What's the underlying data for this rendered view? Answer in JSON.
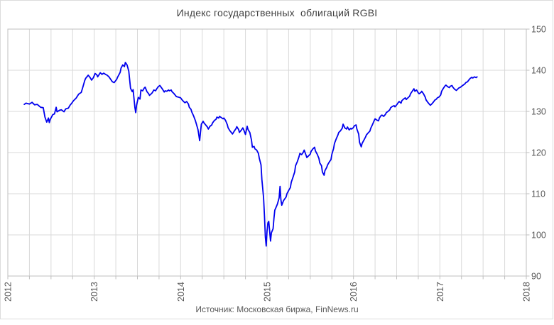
{
  "title": "Индекс государственных  облигаций RGBI",
  "source": "Источник: Московская биржа, FinNews.ru",
  "chart_data": {
    "type": "line",
    "title": "Индекс государственных облигаций RGBI",
    "series_name": "RGBI",
    "xlabel": "",
    "ylabel": "",
    "x_range": [
      2012,
      2018
    ],
    "y_range": [
      90,
      150
    ],
    "x_ticks": [
      "2012",
      "2013",
      "2014",
      "2015",
      "2016",
      "2017",
      "2018"
    ],
    "y_ticks": [
      "90",
      "100",
      "110",
      "120",
      "130",
      "140",
      "150"
    ],
    "x_minor_grid_step": 0.25,
    "grid": true,
    "legend": false,
    "line_color": "#0000ee",
    "grid_color": "#d9d9d9",
    "axis_color": "#bfbfbf",
    "label_color": "#595959",
    "title_color": "#404040",
    "points": [
      [
        2012.19,
        131.7
      ],
      [
        2012.21,
        132.0
      ],
      [
        2012.25,
        131.8
      ],
      [
        2012.28,
        132.2
      ],
      [
        2012.31,
        131.6
      ],
      [
        2012.34,
        131.7
      ],
      [
        2012.38,
        131.0
      ],
      [
        2012.41,
        130.9
      ],
      [
        2012.43,
        128.6
      ],
      [
        2012.45,
        127.4
      ],
      [
        2012.47,
        128.4
      ],
      [
        2012.48,
        127.3
      ],
      [
        2012.49,
        128.0
      ],
      [
        2012.52,
        129.2
      ],
      [
        2012.54,
        129.4
      ],
      [
        2012.56,
        131.0
      ],
      [
        2012.57,
        129.9
      ],
      [
        2012.6,
        130.3
      ],
      [
        2012.62,
        130.4
      ],
      [
        2012.65,
        129.9
      ],
      [
        2012.67,
        130.6
      ],
      [
        2012.7,
        130.8
      ],
      [
        2012.72,
        131.5
      ],
      [
        2012.74,
        132.0
      ],
      [
        2012.76,
        132.6
      ],
      [
        2012.79,
        133.2
      ],
      [
        2012.82,
        134.2
      ],
      [
        2012.85,
        134.6
      ],
      [
        2012.87,
        136.0
      ],
      [
        2012.89,
        137.5
      ],
      [
        2012.9,
        138.0
      ],
      [
        2012.93,
        138.8
      ],
      [
        2012.95,
        138.3
      ],
      [
        2012.97,
        137.6
      ],
      [
        2012.99,
        138.2
      ],
      [
        2013.01,
        139.2
      ],
      [
        2013.03,
        138.9
      ],
      [
        2013.04,
        138.4
      ],
      [
        2013.07,
        139.4
      ],
      [
        2013.09,
        139.0
      ],
      [
        2013.11,
        139.3
      ],
      [
        2013.13,
        139.0
      ],
      [
        2013.15,
        138.8
      ],
      [
        2013.17,
        138.4
      ],
      [
        2013.19,
        137.8
      ],
      [
        2013.21,
        137.2
      ],
      [
        2013.23,
        137.0
      ],
      [
        2013.26,
        137.8
      ],
      [
        2013.27,
        138.3
      ],
      [
        2013.3,
        139.5
      ],
      [
        2013.31,
        140.5
      ],
      [
        2013.33,
        141.3
      ],
      [
        2013.35,
        140.9
      ],
      [
        2013.36,
        141.9
      ],
      [
        2013.38,
        141.3
      ],
      [
        2013.4,
        139.8
      ],
      [
        2013.42,
        135.6
      ],
      [
        2013.44,
        134.8
      ],
      [
        2013.45,
        135.3
      ],
      [
        2013.47,
        131.0
      ],
      [
        2013.48,
        129.7
      ],
      [
        2013.49,
        131.5
      ],
      [
        2013.51,
        133.4
      ],
      [
        2013.53,
        133.0
      ],
      [
        2013.54,
        135.2
      ],
      [
        2013.56,
        135.0
      ],
      [
        2013.58,
        135.7
      ],
      [
        2013.59,
        135.9
      ],
      [
        2013.61,
        134.8
      ],
      [
        2013.63,
        134.3
      ],
      [
        2013.64,
        133.9
      ],
      [
        2013.66,
        134.3
      ],
      [
        2013.67,
        134.5
      ],
      [
        2013.69,
        135.2
      ],
      [
        2013.71,
        135.0
      ],
      [
        2013.72,
        135.4
      ],
      [
        2013.74,
        136.0
      ],
      [
        2013.76,
        136.3
      ],
      [
        2013.77,
        136.0
      ],
      [
        2013.79,
        135.4
      ],
      [
        2013.81,
        134.7
      ],
      [
        2013.82,
        135.0
      ],
      [
        2013.84,
        134.9
      ],
      [
        2013.86,
        135.2
      ],
      [
        2013.87,
        135.0
      ],
      [
        2013.89,
        135.2
      ],
      [
        2013.9,
        134.8
      ],
      [
        2013.92,
        134.4
      ],
      [
        2013.94,
        133.9
      ],
      [
        2013.95,
        133.6
      ],
      [
        2013.97,
        133.5
      ],
      [
        2014.0,
        133.3
      ],
      [
        2014.02,
        132.7
      ],
      [
        2014.04,
        132.3
      ],
      [
        2014.05,
        132.1
      ],
      [
        2014.07,
        132.4
      ],
      [
        2014.09,
        131.8
      ],
      [
        2014.1,
        131.0
      ],
      [
        2014.12,
        130.5
      ],
      [
        2014.13,
        129.8
      ],
      [
        2014.15,
        128.9
      ],
      [
        2014.17,
        127.8
      ],
      [
        2014.18,
        127.1
      ],
      [
        2014.2,
        125.6
      ],
      [
        2014.21,
        124.3
      ],
      [
        2014.22,
        122.9
      ],
      [
        2014.23,
        125.0
      ],
      [
        2014.24,
        126.9
      ],
      [
        2014.26,
        127.6
      ],
      [
        2014.27,
        127.2
      ],
      [
        2014.29,
        126.7
      ],
      [
        2014.31,
        126.2
      ],
      [
        2014.32,
        125.7
      ],
      [
        2014.34,
        126.4
      ],
      [
        2014.36,
        126.7
      ],
      [
        2014.37,
        127.2
      ],
      [
        2014.39,
        127.8
      ],
      [
        2014.41,
        128.1
      ],
      [
        2014.42,
        128.6
      ],
      [
        2014.44,
        128.4
      ],
      [
        2014.45,
        128.8
      ],
      [
        2014.47,
        128.5
      ],
      [
        2014.49,
        128.2
      ],
      [
        2014.5,
        128.4
      ],
      [
        2014.52,
        127.8
      ],
      [
        2014.54,
        126.8
      ],
      [
        2014.55,
        126.0
      ],
      [
        2014.57,
        125.3
      ],
      [
        2014.59,
        124.8
      ],
      [
        2014.6,
        124.5
      ],
      [
        2014.62,
        125.2
      ],
      [
        2014.64,
        125.8
      ],
      [
        2014.65,
        126.3
      ],
      [
        2014.67,
        125.6
      ],
      [
        2014.68,
        124.9
      ],
      [
        2014.7,
        125.4
      ],
      [
        2014.72,
        126.0
      ],
      [
        2014.73,
        125.5
      ],
      [
        2014.75,
        124.4
      ],
      [
        2014.77,
        126.4
      ],
      [
        2014.78,
        125.6
      ],
      [
        2014.8,
        124.9
      ],
      [
        2014.82,
        123.0
      ],
      [
        2014.83,
        121.3
      ],
      [
        2014.85,
        121.5
      ],
      [
        2014.86,
        120.9
      ],
      [
        2014.88,
        120.6
      ],
      [
        2014.9,
        119.8
      ],
      [
        2014.91,
        118.6
      ],
      [
        2014.93,
        117.0
      ],
      [
        2014.94,
        113.5
      ],
      [
        2014.96,
        109.0
      ],
      [
        2014.97,
        104.5
      ],
      [
        2014.98,
        99.5
      ],
      [
        2014.99,
        97.3
      ],
      [
        2015.0,
        101.0
      ],
      [
        2015.01,
        102.9
      ],
      [
        2015.02,
        103.3
      ],
      [
        2015.03,
        101.0
      ],
      [
        2015.04,
        98.5
      ],
      [
        2015.05,
        100.5
      ],
      [
        2015.07,
        101.5
      ],
      [
        2015.08,
        104.0
      ],
      [
        2015.09,
        106.0
      ],
      [
        2015.1,
        106.5
      ],
      [
        2015.12,
        107.5
      ],
      [
        2015.14,
        109.0
      ],
      [
        2015.15,
        111.8
      ],
      [
        2015.16,
        108.5
      ],
      [
        2015.17,
        107.2
      ],
      [
        2015.19,
        108.3
      ],
      [
        2015.2,
        108.6
      ],
      [
        2015.22,
        109.2
      ],
      [
        2015.23,
        110.0
      ],
      [
        2015.25,
        110.8
      ],
      [
        2015.27,
        111.5
      ],
      [
        2015.28,
        112.8
      ],
      [
        2015.3,
        114.0
      ],
      [
        2015.32,
        115.3
      ],
      [
        2015.33,
        116.8
      ],
      [
        2015.35,
        117.8
      ],
      [
        2015.37,
        119.0
      ],
      [
        2015.38,
        119.8
      ],
      [
        2015.4,
        119.5
      ],
      [
        2015.42,
        120.1
      ],
      [
        2015.43,
        120.6
      ],
      [
        2015.45,
        119.4
      ],
      [
        2015.46,
        118.8
      ],
      [
        2015.48,
        119.2
      ],
      [
        2015.5,
        119.6
      ],
      [
        2015.51,
        120.3
      ],
      [
        2015.53,
        120.9
      ],
      [
        2015.55,
        121.3
      ],
      [
        2015.56,
        120.4
      ],
      [
        2015.58,
        119.6
      ],
      [
        2015.6,
        118.6
      ],
      [
        2015.61,
        117.5
      ],
      [
        2015.63,
        116.8
      ],
      [
        2015.64,
        115.3
      ],
      [
        2015.66,
        114.5
      ],
      [
        2015.67,
        115.6
      ],
      [
        2015.69,
        116.4
      ],
      [
        2015.7,
        117.0
      ],
      [
        2015.72,
        117.7
      ],
      [
        2015.74,
        118.3
      ],
      [
        2015.75,
        119.6
      ],
      [
        2015.77,
        121.0
      ],
      [
        2015.78,
        122.2
      ],
      [
        2015.8,
        123.3
      ],
      [
        2015.82,
        124.3
      ],
      [
        2015.83,
        124.9
      ],
      [
        2015.85,
        125.3
      ],
      [
        2015.87,
        125.9
      ],
      [
        2015.88,
        126.9
      ],
      [
        2015.9,
        126.0
      ],
      [
        2015.92,
        125.7
      ],
      [
        2015.93,
        126.2
      ],
      [
        2015.95,
        125.5
      ],
      [
        2015.97,
        125.9
      ],
      [
        2015.98,
        125.7
      ],
      [
        2016.0,
        126.1
      ],
      [
        2016.01,
        126.5
      ],
      [
        2016.03,
        126.7
      ],
      [
        2016.04,
        125.7
      ],
      [
        2016.06,
        124.5
      ],
      [
        2016.07,
        122.5
      ],
      [
        2016.09,
        121.4
      ],
      [
        2016.1,
        122.2
      ],
      [
        2016.12,
        123.0
      ],
      [
        2016.14,
        123.8
      ],
      [
        2016.15,
        124.3
      ],
      [
        2016.17,
        124.8
      ],
      [
        2016.19,
        125.2
      ],
      [
        2016.2,
        125.9
      ],
      [
        2016.22,
        126.8
      ],
      [
        2016.24,
        127.8
      ],
      [
        2016.25,
        128.2
      ],
      [
        2016.27,
        127.9
      ],
      [
        2016.29,
        127.7
      ],
      [
        2016.3,
        128.4
      ],
      [
        2016.32,
        129.0
      ],
      [
        2016.33,
        129.1
      ],
      [
        2016.35,
        128.8
      ],
      [
        2016.37,
        129.3
      ],
      [
        2016.38,
        129.7
      ],
      [
        2016.4,
        130.0
      ],
      [
        2016.42,
        130.4
      ],
      [
        2016.43,
        130.9
      ],
      [
        2016.45,
        131.2
      ],
      [
        2016.47,
        131.4
      ],
      [
        2016.48,
        131.1
      ],
      [
        2016.5,
        131.6
      ],
      [
        2016.52,
        132.2
      ],
      [
        2016.53,
        132.4
      ],
      [
        2016.55,
        132.0
      ],
      [
        2016.56,
        132.6
      ],
      [
        2016.58,
        133.0
      ],
      [
        2016.6,
        133.3
      ],
      [
        2016.61,
        132.9
      ],
      [
        2016.63,
        133.3
      ],
      [
        2016.65,
        133.7
      ],
      [
        2016.66,
        134.3
      ],
      [
        2016.68,
        134.9
      ],
      [
        2016.7,
        135.5
      ],
      [
        2016.71,
        134.9
      ],
      [
        2016.73,
        135.2
      ],
      [
        2016.75,
        134.5
      ],
      [
        2016.76,
        134.3
      ],
      [
        2016.78,
        134.6
      ],
      [
        2016.79,
        134.9
      ],
      [
        2016.81,
        134.3
      ],
      [
        2016.83,
        133.5
      ],
      [
        2016.84,
        132.8
      ],
      [
        2016.86,
        132.2
      ],
      [
        2016.88,
        131.7
      ],
      [
        2016.89,
        131.5
      ],
      [
        2016.91,
        131.9
      ],
      [
        2016.93,
        132.4
      ],
      [
        2016.94,
        132.7
      ],
      [
        2016.96,
        133.0
      ],
      [
        2016.97,
        133.3
      ],
      [
        2016.99,
        133.5
      ],
      [
        2017.01,
        134.0
      ],
      [
        2017.02,
        134.9
      ],
      [
        2017.04,
        135.6
      ],
      [
        2017.06,
        136.2
      ],
      [
        2017.07,
        136.4
      ],
      [
        2017.09,
        136.0
      ],
      [
        2017.11,
        135.8
      ],
      [
        2017.12,
        136.1
      ],
      [
        2017.14,
        136.3
      ],
      [
        2017.15,
        135.9
      ],
      [
        2017.17,
        135.4
      ],
      [
        2017.19,
        135.1
      ],
      [
        2017.2,
        135.3
      ],
      [
        2017.22,
        135.7
      ],
      [
        2017.24,
        135.9
      ],
      [
        2017.25,
        136.1
      ],
      [
        2017.27,
        136.4
      ],
      [
        2017.29,
        136.7
      ],
      [
        2017.3,
        137.0
      ],
      [
        2017.32,
        137.2
      ],
      [
        2017.33,
        137.5
      ],
      [
        2017.35,
        138.0
      ],
      [
        2017.37,
        138.3
      ],
      [
        2017.38,
        138.1
      ],
      [
        2017.4,
        138.4
      ],
      [
        2017.42,
        138.2
      ],
      [
        2017.43,
        138.4
      ]
    ]
  }
}
